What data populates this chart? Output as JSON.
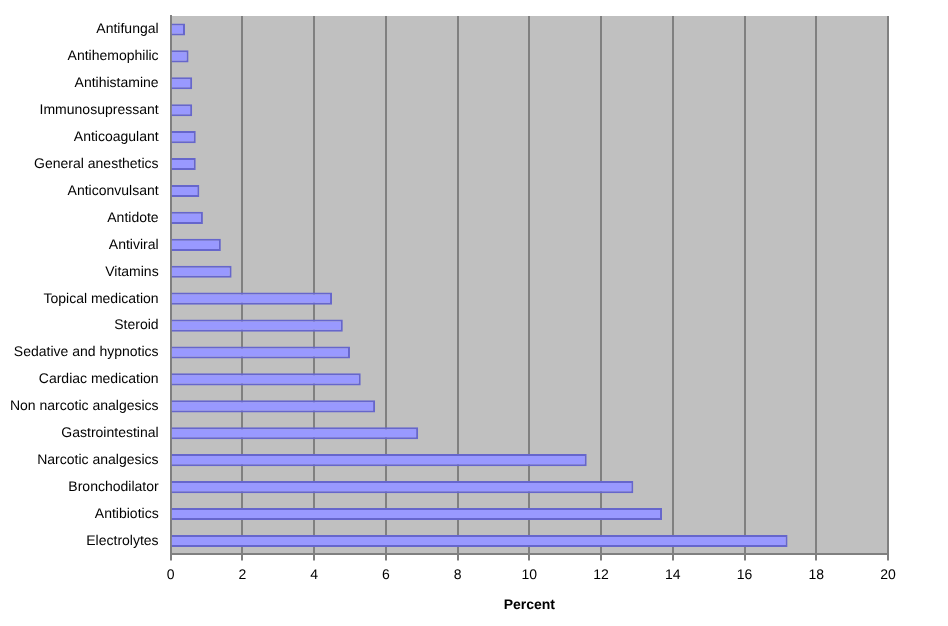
{
  "chart_data": {
    "type": "bar",
    "orientation": "horizontal",
    "xlabel": "Percent",
    "categories": [
      "Antifungal",
      "Antihemophilic",
      "Antihistamine",
      "Immunosupressant",
      "Anticoagulant",
      "General anesthetics",
      "Anticonvulsant",
      "Antidote",
      "Antiviral",
      "Vitamins",
      "Topical medication",
      "Steroid",
      "Sedative and hypnotics",
      "Cardiac medication",
      "Non narcotic analgesics",
      "Gastrointestinal",
      "Narcotic analgesics",
      "Bronchodilator",
      "Antibiotics",
      "Electrolytes"
    ],
    "values": [
      0.4,
      0.5,
      0.6,
      0.6,
      0.7,
      0.7,
      0.8,
      0.9,
      1.4,
      1.7,
      4.5,
      4.8,
      5.0,
      5.3,
      5.7,
      6.9,
      11.6,
      12.9,
      13.7,
      17.2
    ],
    "color": "#9999ff",
    "xlim": [
      0,
      20
    ],
    "xticks": [
      0,
      2,
      4,
      6,
      8,
      10,
      12,
      14,
      16,
      18,
      20
    ],
    "grid": "x",
    "legend": false
  }
}
